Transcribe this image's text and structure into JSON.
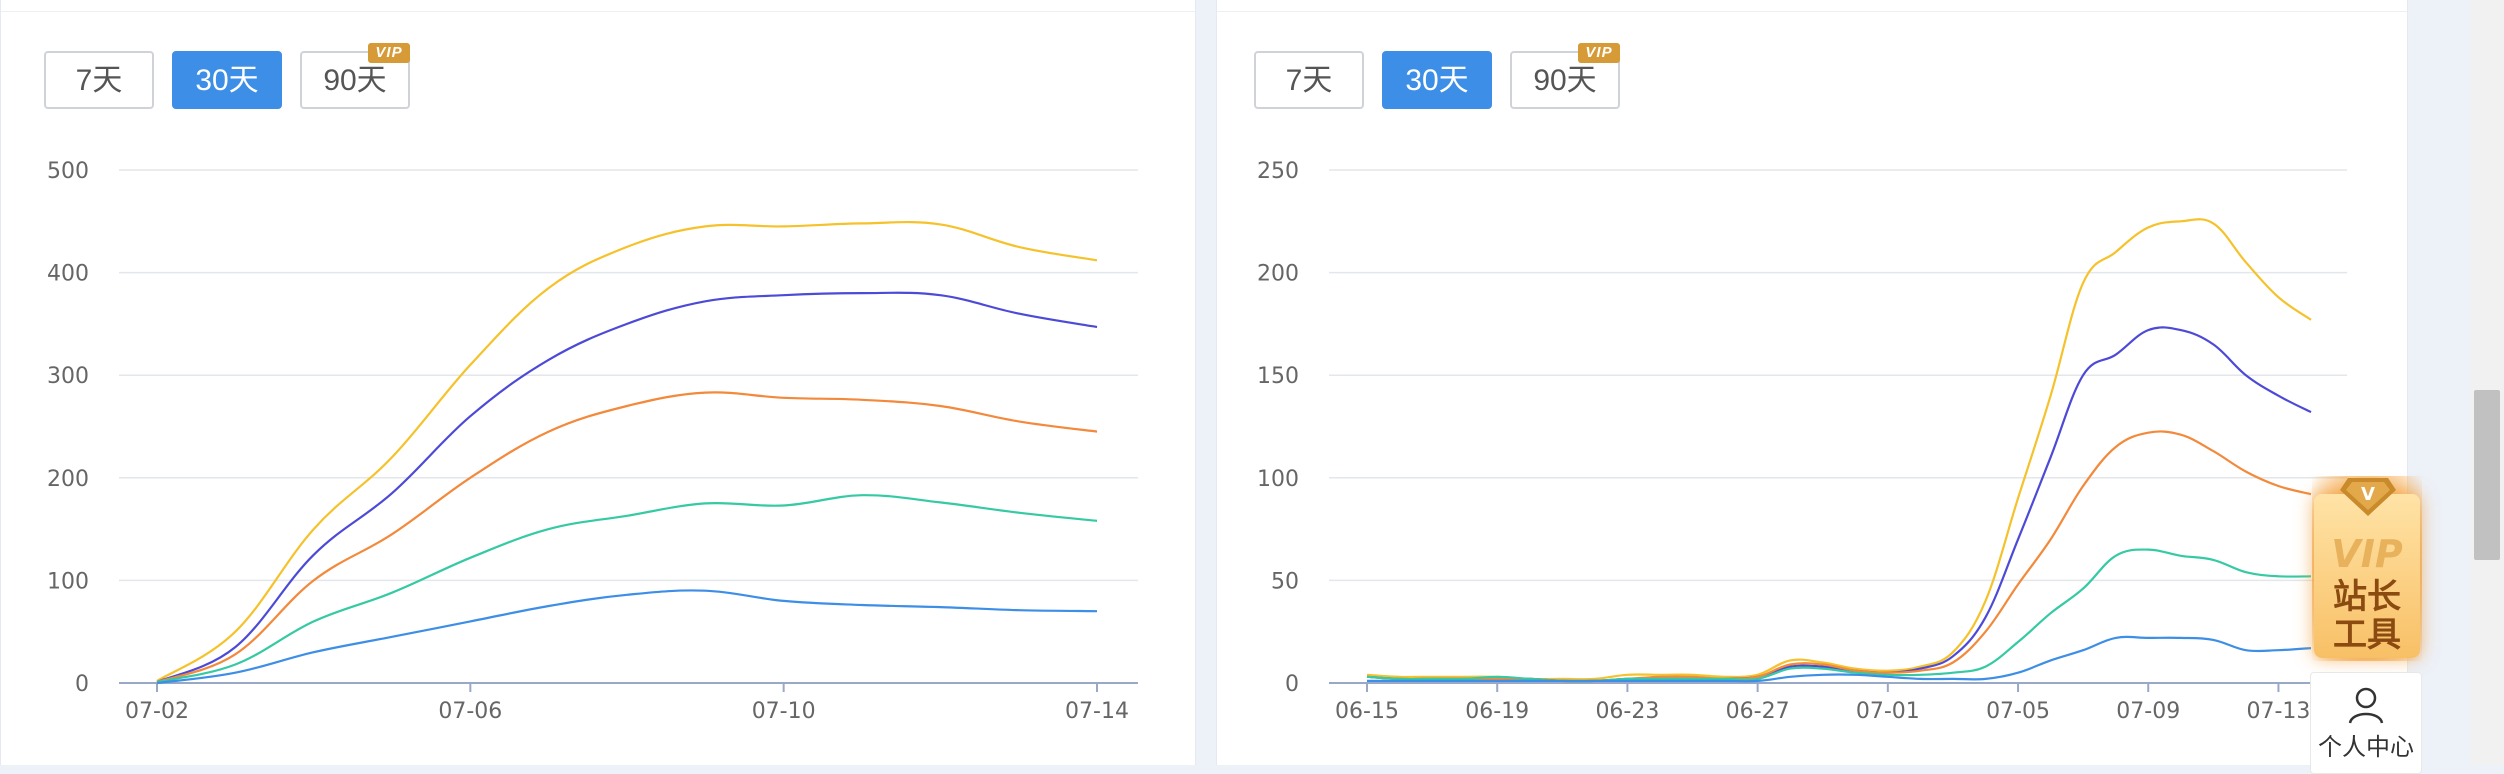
{
  "range_buttons": {
    "left": [
      {
        "label": "7天",
        "active": false
      },
      {
        "label": "30天",
        "active": true
      },
      {
        "label": "90天",
        "active": false,
        "badge": "VIP"
      }
    ],
    "right": [
      {
        "label": "7天",
        "active": false
      },
      {
        "label": "30天",
        "active": true
      },
      {
        "label": "90天",
        "active": false,
        "badge": "VIP"
      }
    ]
  },
  "vip_widget": {
    "badge": "VIP",
    "title": "站长工具"
  },
  "profile": {
    "label": "个人中心"
  },
  "colors": {
    "yellow": "#f5c22b",
    "indigo": "#4c4ad6",
    "orange": "#f2893b",
    "teal": "#35c9a4",
    "blue": "#3d8ee6"
  },
  "chart_data": [
    {
      "type": "line",
      "title": "",
      "xlabel": "",
      "ylabel": "",
      "x": [
        "07-02",
        "07-03",
        "07-04",
        "07-05",
        "07-06",
        "07-07",
        "07-08",
        "07-09",
        "07-10",
        "07-11",
        "07-12",
        "07-13",
        "07-14"
      ],
      "x_tick_labels": [
        "07-02",
        "07-06",
        "07-10",
        "07-14"
      ],
      "y_ticks": [
        "0",
        "100",
        "200",
        "300",
        "400",
        "500"
      ],
      "ylim": [
        0,
        500
      ],
      "grid": true,
      "series": [
        {
          "color": "#f5c22b",
          "values": [
            2,
            50,
            150,
            220,
            310,
            385,
            425,
            445,
            445,
            448,
            447,
            425,
            412
          ]
        },
        {
          "color": "#4c4ad6",
          "values": [
            1,
            35,
            125,
            185,
            260,
            315,
            350,
            372,
            378,
            380,
            378,
            360,
            347
          ]
        },
        {
          "color": "#f2893b",
          "values": [
            1,
            28,
            100,
            145,
            200,
            245,
            270,
            283,
            278,
            276,
            270,
            255,
            245
          ]
        },
        {
          "color": "#35c9a4",
          "values": [
            1,
            18,
            60,
            88,
            122,
            150,
            163,
            175,
            173,
            183,
            176,
            166,
            158
          ]
        },
        {
          "color": "#3d8ee6",
          "values": [
            0,
            10,
            30,
            45,
            60,
            75,
            86,
            90,
            80,
            76,
            74,
            71,
            70
          ]
        }
      ]
    },
    {
      "type": "line",
      "title": "",
      "xlabel": "",
      "ylabel": "",
      "x": [
        "06-15",
        "06-16",
        "06-17",
        "06-18",
        "06-19",
        "06-20",
        "06-21",
        "06-22",
        "06-23",
        "06-24",
        "06-25",
        "06-26",
        "06-27",
        "06-28",
        "06-29",
        "06-30",
        "07-01",
        "07-02",
        "07-03",
        "07-04",
        "07-05",
        "07-06",
        "07-07",
        "07-08",
        "07-09",
        "07-10",
        "07-11",
        "07-12",
        "07-13",
        "07-14"
      ],
      "x_tick_labels": [
        "06-15",
        "06-19",
        "06-23",
        "06-27",
        "07-01",
        "07-05",
        "07-09",
        "07-13"
      ],
      "y_ticks": [
        "0",
        "50",
        "100",
        "150",
        "200",
        "250"
      ],
      "ylim": [
        0,
        250
      ],
      "grid": true,
      "series": [
        {
          "color": "#f5c22b",
          "values": [
            4,
            3,
            3,
            3,
            3,
            2,
            2,
            2,
            4,
            4,
            4,
            3,
            4,
            11,
            10,
            7,
            6,
            8,
            15,
            40,
            90,
            140,
            195,
            210,
            222,
            225,
            224,
            205,
            188,
            177
          ]
        },
        {
          "color": "#4c4ad6",
          "values": [
            3,
            2,
            2,
            2,
            2,
            2,
            1,
            1,
            2,
            2,
            2,
            2,
            3,
            8,
            8,
            6,
            5,
            7,
            13,
            32,
            70,
            110,
            150,
            160,
            172,
            172,
            165,
            150,
            140,
            132
          ]
        },
        {
          "color": "#f2893b",
          "values": [
            3,
            2,
            2,
            2,
            2,
            2,
            1,
            1,
            2,
            3,
            3,
            2,
            3,
            9,
            9,
            6,
            5,
            6,
            10,
            25,
            48,
            70,
            96,
            115,
            122,
            121,
            113,
            103,
            96,
            92
          ]
        },
        {
          "color": "#35c9a4",
          "values": [
            3,
            2,
            2,
            2,
            3,
            2,
            1,
            1,
            2,
            2,
            2,
            2,
            2,
            7,
            7,
            5,
            4,
            4,
            5,
            8,
            20,
            34,
            46,
            62,
            65,
            62,
            60,
            54,
            52,
            52
          ]
        },
        {
          "color": "#3d8ee6",
          "values": [
            1,
            1,
            1,
            1,
            1,
            1,
            1,
            1,
            1,
            1,
            1,
            1,
            1,
            3,
            4,
            4,
            3,
            2,
            2,
            2,
            5,
            11,
            16,
            22,
            22,
            22,
            21,
            16,
            16,
            17
          ]
        }
      ]
    }
  ]
}
